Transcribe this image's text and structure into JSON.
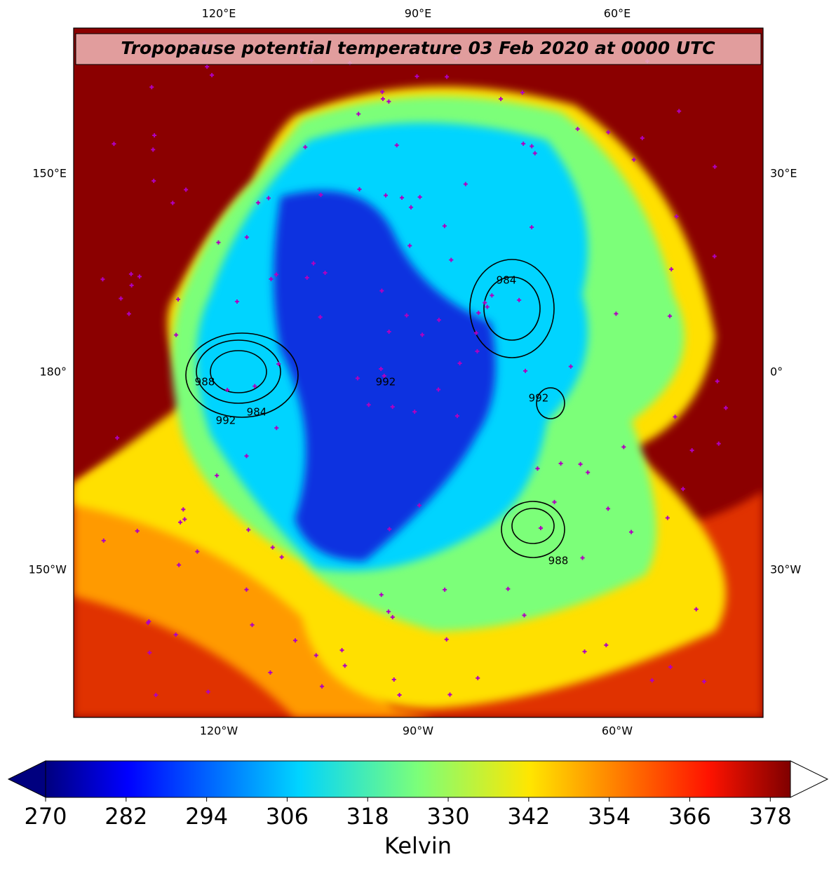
{
  "map": {
    "title": "Tropopause potential temperature 03 Feb 2020 at 0000 UTC",
    "top_labels": [
      "120°E",
      "90°E",
      "60°E"
    ],
    "bottom_labels": [
      "120°W",
      "90°W",
      "60°W"
    ],
    "left_labels": [
      "150°E",
      "180°",
      "150°W"
    ],
    "right_labels": [
      "30°E",
      "0°",
      "30°W"
    ],
    "contour_labels": [
      "988",
      "992",
      "984",
      "992",
      "992",
      "988",
      "984"
    ]
  },
  "colorbar": {
    "label": "Kelvin",
    "colormap": "jet",
    "extend": "both",
    "lim": [
      270,
      381
    ],
    "ticks": [
      270,
      282,
      294,
      306,
      318,
      330,
      342,
      354,
      366,
      378
    ]
  }
}
